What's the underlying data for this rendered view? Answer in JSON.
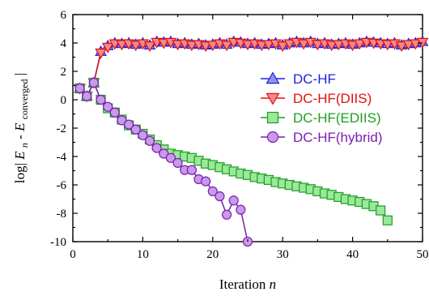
{
  "chart_data": {
    "type": "line",
    "xlabel": "Iteration",
    "xlabel_var": "n",
    "ylabel_prefix": "log| ",
    "ylabel_E": "E",
    "ylabel_sub_n": "n",
    "ylabel_minus": " - ",
    "ylabel_sub_conv": "converged",
    "ylabel_suffix": "|",
    "xlim": [
      0,
      50
    ],
    "ylim": [
      -10,
      6
    ],
    "x_ticks": [
      0,
      10,
      20,
      30,
      40,
      50
    ],
    "y_ticks": [
      -10,
      -8,
      -6,
      -4,
      -2,
      0,
      2,
      4,
      6
    ],
    "x_tick_labels": [
      "0",
      "10",
      "20",
      "30",
      "40",
      "50"
    ],
    "y_tick_labels": [
      "-10",
      "-8",
      "-6",
      "-4",
      "-2",
      "0",
      "2",
      "4",
      "6"
    ],
    "grid": false,
    "legend_position": "right",
    "series": [
      {
        "name": "DC-HF",
        "marker": "triangle-up",
        "color": "#1f1fe0",
        "fill": "#8f8ff0",
        "x": [
          1,
          2,
          3,
          4,
          5,
          6,
          7,
          8,
          9,
          10,
          11,
          12,
          13,
          14,
          15,
          16,
          17,
          18,
          19,
          20,
          21,
          22,
          23,
          24,
          25,
          26,
          27,
          28,
          29,
          30,
          31,
          32,
          33,
          34,
          35,
          36,
          37,
          38,
          39,
          40,
          41,
          42,
          43,
          44,
          45,
          46,
          47,
          48,
          49,
          50
        ],
        "y": [
          0.8,
          0.25,
          1.2,
          3.4,
          3.8,
          4.0,
          3.95,
          4.0,
          3.9,
          4.0,
          3.85,
          4.1,
          4.05,
          4.1,
          3.95,
          4.0,
          3.9,
          3.95,
          3.85,
          3.9,
          4.0,
          3.9,
          4.1,
          4.05,
          3.95,
          4.0,
          3.9,
          3.95,
          4.0,
          3.85,
          4.0,
          4.1,
          4.0,
          4.1,
          3.95,
          4.0,
          3.9,
          3.95,
          4.0,
          3.9,
          4.0,
          4.1,
          4.05,
          4.0,
          3.95,
          4.0,
          3.85,
          3.95,
          4.0,
          4.1
        ]
      },
      {
        "name": "DC-HF(DIIS)",
        "marker": "triangle-down",
        "color": "#e01010",
        "fill": "#f08a8a",
        "x": [
          1,
          2,
          3,
          4,
          5,
          6,
          7,
          8,
          9,
          10,
          11,
          12,
          13,
          14,
          15,
          16,
          17,
          18,
          19,
          20,
          21,
          22,
          23,
          24,
          25,
          26,
          27,
          28,
          29,
          30,
          31,
          32,
          33,
          34,
          35,
          36,
          37,
          38,
          39,
          40,
          41,
          42,
          43,
          44,
          45,
          46,
          47,
          48,
          49,
          50
        ],
        "y": [
          0.8,
          0.25,
          1.2,
          3.3,
          3.7,
          3.95,
          3.9,
          3.95,
          3.85,
          3.95,
          3.8,
          4.05,
          4.0,
          4.05,
          3.9,
          3.95,
          3.85,
          3.9,
          3.8,
          3.85,
          3.95,
          3.85,
          4.05,
          4.0,
          3.9,
          3.95,
          3.85,
          3.9,
          3.95,
          3.8,
          3.95,
          4.05,
          3.95,
          4.05,
          3.9,
          3.95,
          3.85,
          3.9,
          3.95,
          3.85,
          3.95,
          4.05,
          4.0,
          3.95,
          3.9,
          3.95,
          3.8,
          3.9,
          3.95,
          4.05
        ]
      },
      {
        "name": "DC-HF(EDIIS)",
        "marker": "square",
        "color": "#1f9e1f",
        "fill": "#9be89b",
        "x": [
          1,
          2,
          3,
          4,
          5,
          6,
          7,
          8,
          9,
          10,
          11,
          12,
          13,
          14,
          15,
          16,
          17,
          18,
          19,
          20,
          21,
          22,
          23,
          24,
          25,
          26,
          27,
          28,
          29,
          30,
          31,
          32,
          33,
          34,
          35,
          36,
          37,
          38,
          39,
          40,
          41,
          42,
          43,
          44,
          45
        ],
        "y": [
          0.8,
          0.25,
          1.2,
          0.0,
          -0.6,
          -0.9,
          -1.4,
          -1.8,
          -2.1,
          -2.4,
          -2.8,
          -3.2,
          -3.5,
          -3.8,
          -3.9,
          -4.0,
          -4.1,
          -4.3,
          -4.5,
          -4.6,
          -4.75,
          -4.9,
          -5.05,
          -5.2,
          -5.3,
          -5.45,
          -5.55,
          -5.65,
          -5.8,
          -5.9,
          -6.0,
          -6.1,
          -6.2,
          -6.3,
          -6.45,
          -6.6,
          -6.7,
          -6.85,
          -7.0,
          -7.1,
          -7.2,
          -7.35,
          -7.5,
          -7.8,
          -8.5
        ]
      },
      {
        "name": "DC-HF(hybrid)",
        "marker": "circle",
        "color": "#7a1fb0",
        "fill": "#c99ae8",
        "x": [
          1,
          2,
          3,
          4,
          5,
          6,
          7,
          8,
          9,
          10,
          11,
          12,
          13,
          14,
          15,
          16,
          17,
          18,
          19,
          20,
          21,
          22,
          23,
          24,
          25
        ],
        "y": [
          0.8,
          0.25,
          1.2,
          0.0,
          -0.5,
          -0.9,
          -1.45,
          -1.75,
          -2.1,
          -2.5,
          -2.9,
          -3.4,
          -3.8,
          -4.1,
          -4.45,
          -4.95,
          -4.95,
          -5.6,
          -5.75,
          -6.45,
          -6.8,
          -8.1,
          -7.1,
          -7.75,
          -10.0
        ]
      }
    ]
  }
}
